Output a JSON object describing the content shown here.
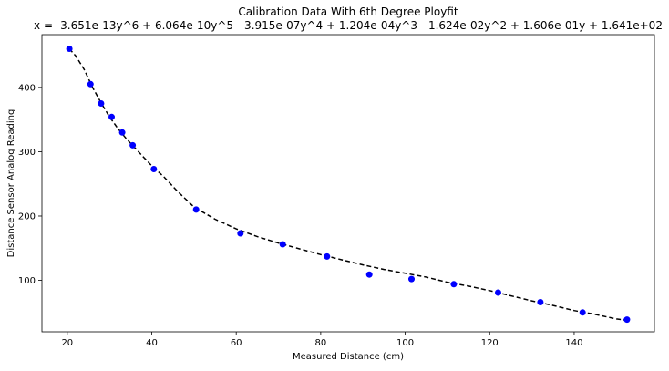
{
  "chart_data": {
    "type": "scatter",
    "title": "Calibration Data With 6th Degree Ployfit",
    "subtitle": "x = -3.651e-13y^6 + 6.064e-10y^5 - 3.915e-07y^4 + 1.204e-04y^3 - 1.624e-02y^2 + 1.606e-01y + 1.641e+02",
    "xlabel": "Measured Distance (cm)",
    "ylabel": "Distance Sensor Analog Reading",
    "xlim": [
      14,
      159
    ],
    "ylim": [
      20,
      482
    ],
    "xticks": [
      20,
      40,
      60,
      80,
      100,
      120,
      140
    ],
    "yticks": [
      100,
      200,
      300,
      400
    ],
    "grid": false,
    "series": [
      {
        "type": "scatter",
        "color": "#0000ff",
        "x": [
          20.5,
          25.5,
          28,
          30.5,
          33,
          35.5,
          40.5,
          50.5,
          61,
          71,
          81.5,
          91.5,
          101.5,
          111.5,
          122,
          132,
          142,
          152.5
        ],
        "y": [
          460,
          405,
          375,
          354,
          330,
          310,
          273,
          210,
          173,
          156,
          137,
          109,
          102,
          94,
          81,
          66,
          50,
          39
        ]
      },
      {
        "type": "line",
        "color": "#000000",
        "linestyle": "dashed",
        "x": [
          20.5,
          22,
          24,
          26,
          28,
          30,
          32,
          34,
          36,
          38,
          40,
          43,
          46,
          50,
          55,
          60,
          65,
          70,
          75,
          80,
          85,
          90,
          95,
          100,
          105,
          110,
          115,
          120,
          125,
          130,
          135,
          140,
          145,
          150,
          152.5
        ],
        "y": [
          460,
          449,
          428,
          400,
          376,
          354,
          336,
          320,
          306,
          292,
          278,
          260,
          239,
          214,
          195,
          180,
          168,
          158,
          149,
          140,
          132,
          124,
          117,
          111,
          105,
          97,
          91,
          84,
          76,
          68,
          61,
          53,
          47,
          40,
          38
        ]
      }
    ]
  }
}
